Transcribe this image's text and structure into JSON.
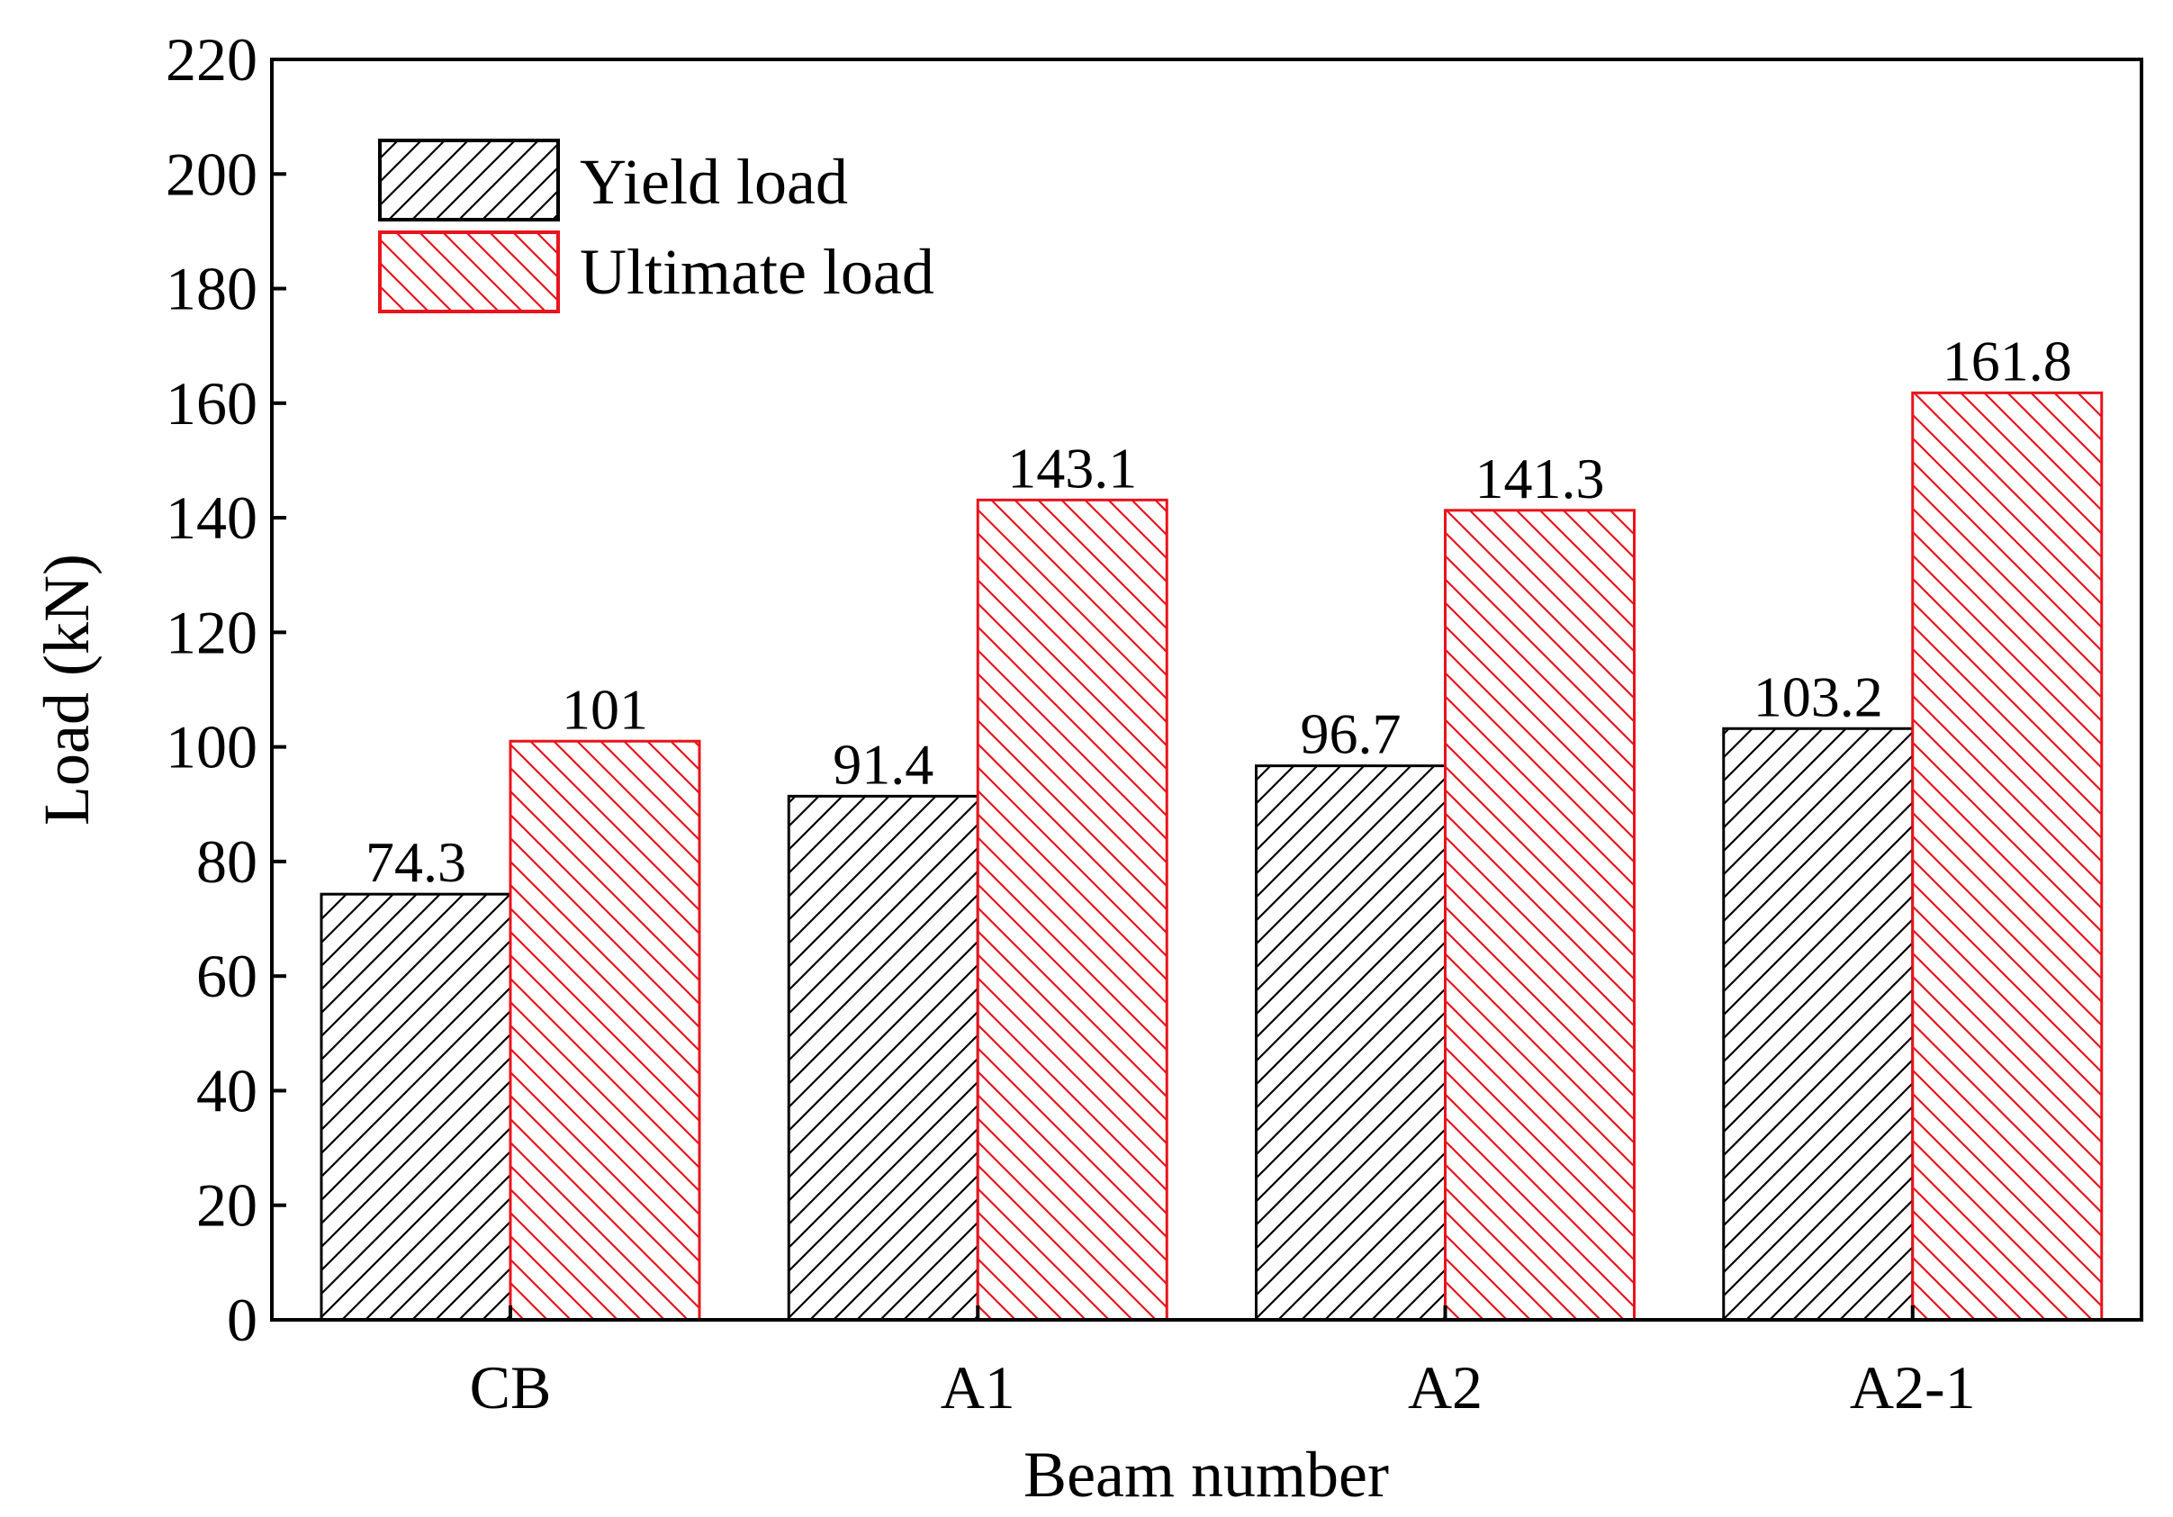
{
  "chart_data": {
    "type": "bar",
    "xlabel": "Beam number",
    "ylabel": "Load (kN)",
    "categories": [
      "CB",
      "A1",
      "A2",
      "A2-1"
    ],
    "ylim": [
      0,
      220
    ],
    "yticks": [
      0,
      20,
      40,
      60,
      80,
      100,
      120,
      140,
      160,
      180,
      200,
      220
    ],
    "ytick_labels": [
      "0",
      "20",
      "40",
      "60",
      "80",
      "100",
      "120",
      "140",
      "160",
      "180",
      "200",
      "220"
    ],
    "series": [
      {
        "name": "Yield load",
        "values": [
          74.3,
          91.4,
          96.7,
          103.2
        ],
        "labels": [
          "74.3",
          "91.4",
          "96.7",
          "103.2"
        ],
        "color": "#000000",
        "hatch": "forward-diagonal"
      },
      {
        "name": "Ultimate load",
        "values": [
          101,
          143.1,
          141.3,
          161.8
        ],
        "labels": [
          "101",
          "143.1",
          "141.3",
          "161.8"
        ],
        "color": "#e8141c",
        "hatch": "backward-diagonal"
      }
    ],
    "legend_position": "top-left",
    "grid": false
  }
}
